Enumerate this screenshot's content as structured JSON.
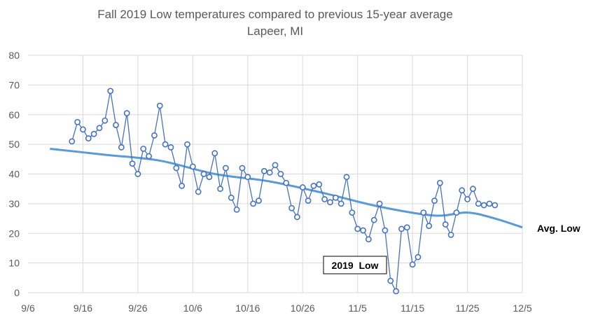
{
  "chart_data": {
    "type": "line",
    "title": "Fall 2019 Low temperatures compared to previous 15-year average",
    "subtitle": "Lapeer, MI",
    "xlabel": "",
    "ylabel": "",
    "x_ticks": [
      "9/6",
      "9/16",
      "9/26",
      "10/6",
      "10/16",
      "10/26",
      "11/5",
      "11/15",
      "11/25",
      "12/5"
    ],
    "y_ticks": [
      0,
      10,
      20,
      30,
      40,
      50,
      60,
      70,
      80
    ],
    "ylim": [
      0,
      80
    ],
    "xlim": [
      "2019-09-06",
      "2019-12-05"
    ],
    "grid": true,
    "colors": {
      "low_2019": "#4472C4",
      "avg_low": "#5B9BD5"
    },
    "annotations": [
      "2019  Low",
      "Avg. Low"
    ],
    "series": [
      {
        "name": "2019  Low",
        "start_date": "2019-09-14",
        "values": [
          51,
          57.5,
          55,
          52,
          53.5,
          55.5,
          58,
          68,
          56.5,
          49,
          60.5,
          43.5,
          40,
          48.5,
          46,
          53,
          63,
          50,
          49,
          42,
          36,
          50,
          42.5,
          34,
          40,
          39,
          47,
          35,
          42,
          32,
          28,
          42,
          39,
          30,
          31,
          41,
          40.5,
          43,
          40,
          37,
          28.5,
          25.5,
          35.5,
          31,
          36,
          36.5,
          31.5,
          30.5,
          32,
          30,
          39,
          27,
          21.5,
          21,
          18,
          24.5,
          30,
          21,
          4,
          0.5,
          21.5,
          22,
          9.5,
          12,
          27,
          22.5,
          31,
          37,
          23,
          19.5,
          27,
          34.5,
          31.5,
          35,
          30,
          29.5,
          30,
          29.5
        ]
      },
      {
        "name": "Avg. Low",
        "dates": [
          "2019-09-10",
          "2019-09-20",
          "2019-09-30",
          "2019-10-10",
          "2019-10-20",
          "2019-10-30",
          "2019-11-09",
          "2019-11-19",
          "2019-11-25",
          "2019-11-30",
          "2019-12-05"
        ],
        "values": [
          48.5,
          46.5,
          44.5,
          40,
          37.5,
          33.5,
          29,
          26,
          27,
          25,
          22
        ]
      }
    ]
  }
}
